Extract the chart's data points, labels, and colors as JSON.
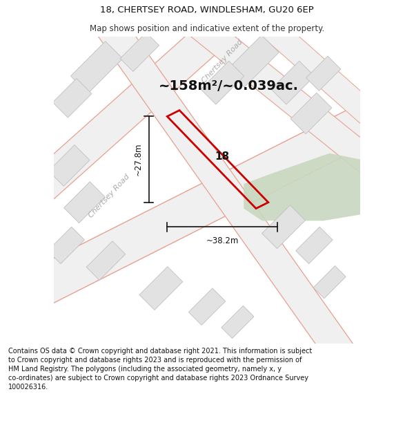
{
  "title_line1": "18, CHERTSEY ROAD, WINDLESHAM, GU20 6EP",
  "title_line2": "Map shows position and indicative extent of the property.",
  "area_text": "~158m²/~0.039ac.",
  "property_number": "18",
  "dim_width": "~38.2m",
  "dim_height": "~27.8m",
  "footer_text": "Contains OS data © Crown copyright and database right 2021. This information is subject to Crown copyright and database rights 2023 and is reproduced with the permission of HM Land Registry. The polygons (including the associated geometry, namely x, y co-ordinates) are subject to Crown copyright and database rights 2023 Ordnance Survey 100026316.",
  "bg_color": "#ffffff",
  "road_stroke": "#e8a090",
  "building_fill": "#e2e2e2",
  "building_stroke": "#c0c0c0",
  "green_fill": "#c8d8c0",
  "property_stroke": "#cc0000",
  "dim_line_color": "#111111",
  "road_label_color": "#aaaaaa",
  "title_fontsize": 9.5,
  "subtitle_fontsize": 8.5,
  "area_fontsize": 14,
  "footer_fontsize": 7.0
}
